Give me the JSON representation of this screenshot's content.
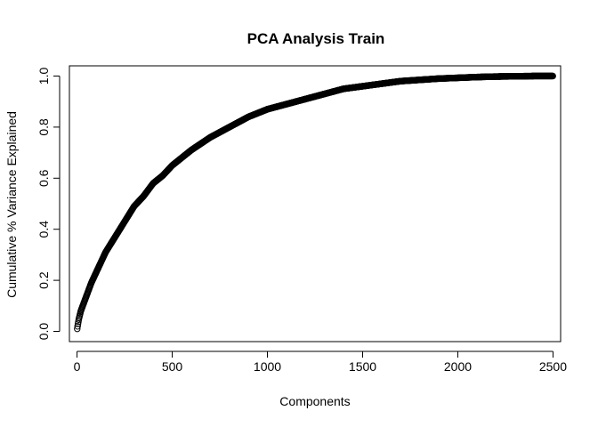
{
  "chart_data": {
    "type": "scatter",
    "title": "PCA Analysis Train",
    "xlabel": "Components",
    "ylabel": "Cumulative % Variance Explained",
    "xlim": [
      -40,
      2540
    ],
    "ylim": [
      -0.04,
      1.04
    ],
    "xticks": [
      0,
      500,
      1000,
      1500,
      2000,
      2500
    ],
    "xtick_labels": [
      "0",
      "500",
      "1000",
      "1500",
      "2000",
      "2500"
    ],
    "yticks": [
      0.0,
      0.2,
      0.4,
      0.6,
      0.8,
      1.0
    ],
    "ytick_labels": [
      "0.0",
      "0.2",
      "0.4",
      "0.6",
      "0.8",
      "1.0"
    ],
    "grid": false,
    "legend": "none",
    "marker": "open-circle",
    "color": "#000000",
    "series": [
      {
        "x": [
          1,
          5,
          10,
          20,
          30,
          50,
          75,
          100,
          150,
          200,
          250,
          300,
          350,
          400,
          450,
          500,
          600,
          700,
          800,
          900,
          1000,
          1100,
          1200,
          1300,
          1400,
          1500,
          1600,
          1700,
          1800,
          1900,
          2000,
          2100,
          2200,
          2300,
          2400,
          2500
        ],
        "y": [
          0.01,
          0.03,
          0.05,
          0.08,
          0.1,
          0.14,
          0.19,
          0.23,
          0.31,
          0.37,
          0.43,
          0.49,
          0.53,
          0.58,
          0.61,
          0.65,
          0.71,
          0.76,
          0.8,
          0.84,
          0.87,
          0.89,
          0.91,
          0.93,
          0.95,
          0.96,
          0.97,
          0.98,
          0.985,
          0.99,
          0.993,
          0.996,
          0.998,
          0.999,
          1.0,
          1.0
        ]
      }
    ]
  }
}
